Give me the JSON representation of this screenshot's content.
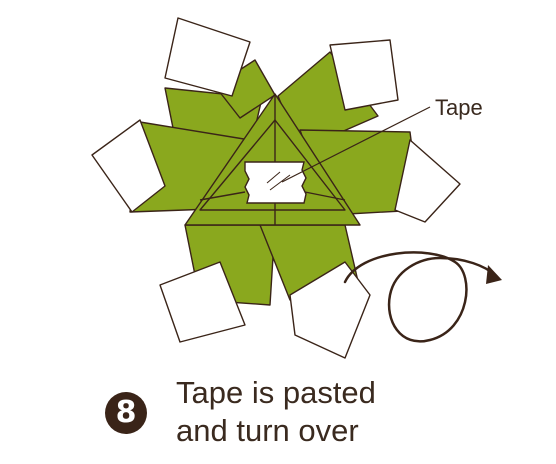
{
  "labels": {
    "tape": "Tape"
  },
  "step": {
    "number": "8",
    "line1": "Tape is pasted",
    "line2": "and turn over"
  },
  "colors": {
    "green": "#8aa81e",
    "outline": "#3a2418",
    "white": "#ffffff",
    "tape": "#ffffff"
  },
  "icons": [
    "rotate-over-arrow-icon",
    "tape-piece-icon"
  ]
}
